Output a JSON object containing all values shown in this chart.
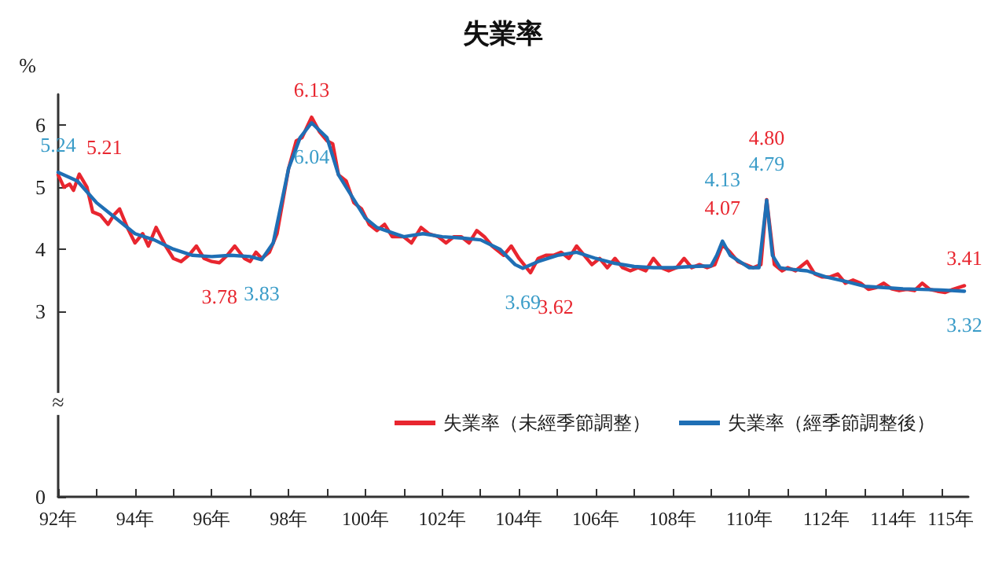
{
  "chart_data": {
    "type": "line",
    "title": "失業率",
    "ylabel": "%",
    "legend": "bottom right",
    "grid": false,
    "marker": "none",
    "line_style": "solid",
    "xlim": [
      92,
      115.7
    ],
    "xticks": [
      {
        "value": 92,
        "label": "92年"
      },
      {
        "value": 93,
        "label": null
      },
      {
        "value": 94,
        "label": "94年"
      },
      {
        "value": 95,
        "label": null
      },
      {
        "value": 96,
        "label": "96年"
      },
      {
        "value": 97,
        "label": null
      },
      {
        "value": 98,
        "label": "98年"
      },
      {
        "value": 99,
        "label": null
      },
      {
        "value": 100,
        "label": "100年"
      },
      {
        "value": 101,
        "label": null
      },
      {
        "value": 102,
        "label": "102年"
      },
      {
        "value": 103,
        "label": null
      },
      {
        "value": 104,
        "label": "104年"
      },
      {
        "value": 105,
        "label": null
      },
      {
        "value": 106,
        "label": "106年"
      },
      {
        "value": 107,
        "label": null
      },
      {
        "value": 108,
        "label": "108年"
      },
      {
        "value": 109,
        "label": null
      },
      {
        "value": 110,
        "label": "110年"
      },
      {
        "value": 111,
        "label": null
      },
      {
        "value": 112,
        "label": "112年"
      },
      {
        "value": 113,
        "label": null
      },
      {
        "value": 114,
        "label": "114年"
      },
      {
        "value": 115,
        "label": "115年"
      }
    ],
    "ylim": [
      0,
      6.5
    ],
    "yticks": [
      0,
      3,
      4,
      5,
      6
    ],
    "annotations": [
      {
        "text": "≈",
        "x": 92,
        "y": 1.5
      }
    ],
    "series": [
      {
        "name": "失業率（未經季節調整）",
        "color": "#e8262f",
        "x": [
          92.0,
          92.15,
          92.3,
          92.4,
          92.55,
          92.75,
          92.9,
          93.1,
          93.3,
          93.45,
          93.6,
          93.8,
          94.0,
          94.2,
          94.35,
          94.55,
          94.8,
          95.0,
          95.2,
          95.4,
          95.6,
          95.8,
          96.0,
          96.2,
          96.4,
          96.6,
          96.85,
          97.0,
          97.15,
          97.3,
          97.5,
          97.7,
          98.0,
          98.2,
          98.35,
          98.5,
          98.6,
          98.8,
          99.0,
          99.15,
          99.3,
          99.5,
          99.7,
          99.9,
          100.1,
          100.3,
          100.5,
          100.7,
          101.0,
          101.2,
          101.45,
          101.65,
          101.9,
          102.1,
          102.3,
          102.5,
          102.7,
          102.9,
          103.1,
          103.3,
          103.6,
          103.8,
          104.0,
          104.3,
          104.5,
          104.7,
          104.9,
          105.1,
          105.3,
          105.5,
          105.7,
          105.9,
          106.1,
          106.3,
          106.5,
          106.7,
          106.9,
          107.1,
          107.3,
          107.5,
          107.7,
          107.9,
          108.1,
          108.3,
          108.5,
          108.7,
          108.9,
          109.1,
          109.3,
          109.5,
          109.7,
          109.9,
          110.1,
          110.3,
          110.45,
          110.65,
          110.85,
          111.0,
          111.2,
          111.5,
          111.7,
          111.9,
          112.1,
          112.3,
          112.5,
          112.7,
          112.9,
          113.1,
          113.3,
          113.5,
          113.7,
          113.9,
          114.1,
          114.3,
          114.5,
          114.7,
          114.9,
          115.1,
          115.3,
          115.6
        ],
        "values": [
          5.2,
          5.0,
          5.05,
          4.95,
          5.21,
          5.0,
          4.6,
          4.55,
          4.4,
          4.55,
          4.65,
          4.35,
          4.1,
          4.25,
          4.05,
          4.35,
          4.05,
          3.85,
          3.8,
          3.9,
          4.05,
          3.85,
          3.8,
          3.78,
          3.9,
          4.05,
          3.85,
          3.8,
          3.95,
          3.85,
          3.95,
          4.25,
          5.3,
          5.75,
          5.8,
          6.0,
          6.13,
          5.9,
          5.75,
          5.7,
          5.2,
          5.1,
          4.75,
          4.65,
          4.4,
          4.3,
          4.4,
          4.2,
          4.2,
          4.1,
          4.35,
          4.25,
          4.2,
          4.1,
          4.2,
          4.2,
          4.1,
          4.3,
          4.2,
          4.05,
          3.9,
          4.05,
          3.85,
          3.62,
          3.85,
          3.9,
          3.9,
          3.95,
          3.85,
          4.05,
          3.9,
          3.75,
          3.85,
          3.7,
          3.85,
          3.7,
          3.65,
          3.7,
          3.65,
          3.85,
          3.7,
          3.65,
          3.7,
          3.85,
          3.7,
          3.75,
          3.7,
          3.75,
          4.07,
          3.95,
          3.8,
          3.75,
          3.7,
          3.75,
          4.8,
          3.75,
          3.65,
          3.7,
          3.65,
          3.8,
          3.6,
          3.55,
          3.55,
          3.6,
          3.45,
          3.5,
          3.45,
          3.35,
          3.38,
          3.45,
          3.36,
          3.33,
          3.35,
          3.33,
          3.45,
          3.35,
          3.32,
          3.3,
          3.35,
          3.41
        ],
        "value_labels": [
          null,
          null,
          null,
          null,
          "5.21",
          null,
          null,
          null,
          null,
          null,
          null,
          null,
          null,
          null,
          null,
          null,
          null,
          null,
          null,
          null,
          null,
          null,
          null,
          "3.78",
          null,
          null,
          null,
          null,
          null,
          null,
          null,
          null,
          null,
          null,
          null,
          null,
          "6.13",
          null,
          null,
          null,
          null,
          null,
          null,
          null,
          null,
          null,
          null,
          null,
          null,
          null,
          null,
          null,
          null,
          null,
          null,
          null,
          null,
          null,
          null,
          null,
          null,
          null,
          null,
          "3.62",
          null,
          null,
          null,
          null,
          null,
          null,
          null,
          null,
          null,
          null,
          null,
          null,
          null,
          null,
          null,
          null,
          null,
          null,
          null,
          null,
          null,
          null,
          null,
          null,
          "4.07",
          null,
          null,
          null,
          null,
          null,
          "4.80",
          null,
          null,
          null,
          null,
          null,
          null,
          null,
          null,
          null,
          null,
          null,
          null,
          null,
          null,
          null,
          null,
          null,
          null,
          null,
          null,
          null,
          null,
          null,
          null,
          "3.41"
        ]
      },
      {
        "name": "失業率（經季節調整後）",
        "color": "#1f6fb5",
        "x": [
          92.0,
          92.5,
          93.0,
          93.5,
          94.0,
          94.5,
          95.0,
          95.5,
          96.0,
          96.5,
          97.0,
          97.3,
          97.6,
          98.0,
          98.3,
          98.6,
          99.0,
          99.3,
          99.7,
          100.0,
          100.3,
          101.0,
          101.5,
          102.0,
          102.5,
          103.0,
          103.5,
          103.9,
          104.1,
          104.5,
          105.0,
          105.5,
          106.0,
          106.5,
          107.0,
          107.5,
          108.0,
          108.5,
          109.0,
          109.15,
          109.3,
          109.5,
          110.0,
          110.25,
          110.45,
          110.6,
          110.8,
          111.0,
          111.5,
          112.0,
          112.5,
          113.0,
          113.5,
          114.0,
          114.5,
          115.0,
          115.6
        ],
        "values": [
          5.24,
          5.1,
          4.75,
          4.5,
          4.25,
          4.15,
          4.0,
          3.9,
          3.88,
          3.9,
          3.88,
          3.83,
          4.1,
          5.3,
          5.8,
          6.04,
          5.8,
          5.2,
          4.8,
          4.5,
          4.35,
          4.2,
          4.25,
          4.2,
          4.18,
          4.15,
          4.0,
          3.75,
          3.69,
          3.8,
          3.9,
          3.95,
          3.85,
          3.77,
          3.72,
          3.7,
          3.7,
          3.72,
          3.73,
          3.9,
          4.13,
          3.9,
          3.7,
          3.7,
          4.79,
          3.9,
          3.7,
          3.68,
          3.65,
          3.55,
          3.48,
          3.4,
          3.38,
          3.36,
          3.35,
          3.34,
          3.32
        ],
        "value_labels": [
          "5.24",
          null,
          null,
          null,
          null,
          null,
          null,
          null,
          null,
          null,
          null,
          "3.83",
          null,
          null,
          null,
          "6.04",
          null,
          null,
          null,
          null,
          null,
          null,
          null,
          null,
          null,
          null,
          null,
          null,
          "3.69",
          null,
          null,
          null,
          null,
          null,
          null,
          null,
          null,
          null,
          null,
          null,
          "4.13",
          null,
          null,
          null,
          "4.79",
          null,
          null,
          null,
          null,
          null,
          null,
          null,
          null,
          null,
          null,
          null,
          "3.32"
        ]
      }
    ]
  }
}
